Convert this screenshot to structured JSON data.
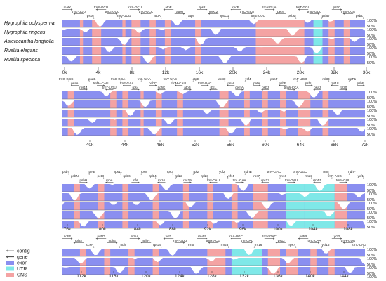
{
  "species": [
    "Hygrophila polysperma",
    "Hygrophila ringens",
    "Asteracantha longifolia",
    "Ruellia elegans",
    "Ruellia speciosa"
  ],
  "legend": [
    {
      "label": "contig",
      "kind": "contig",
      "color": "#8c8c8c"
    },
    {
      "label": "gene",
      "kind": "gene",
      "color": "#555555"
    },
    {
      "label": "exon",
      "kind": "swatch",
      "color": "#8a8ff0"
    },
    {
      "label": "UTR",
      "kind": "swatch",
      "color": "#7fe8e8"
    },
    {
      "label": "CNS",
      "kind": "swatch",
      "color": "#f4a3a3"
    }
  ],
  "colors": {
    "exon": "#8a8ff0",
    "utr": "#7fe8e8",
    "cns": "#f4a3a3",
    "curve": "#ffffff",
    "gene_line": "#555555"
  },
  "pct_labels": [
    "100%",
    "50%"
  ],
  "panels": [
    {
      "id": "panel-1",
      "ticks": [
        "0k",
        "4k",
        "8k",
        "12k",
        "16k",
        "20k",
        "24k",
        "28k",
        "32k",
        "36k"
      ],
      "gene_labels": [
        "matK",
        "trnK-UUU",
        "rps16",
        "trnS-GCU",
        "trnG-UCC",
        "trnQ-UUG",
        "trnS-GCU",
        "trnG-UCC",
        "atpA",
        "atpF",
        "atpH",
        "atpI",
        "rps2",
        "rpoC2",
        "rpoC1",
        "rpoB",
        "trnC-GCA",
        "trnE-UUC",
        "trnY-GUA",
        "petN",
        "psbM",
        "trnT-GGU",
        "trnD-GUC",
        "psbD",
        "psbC",
        "trnS-UGA",
        "psbZ"
      ]
    },
    {
      "id": "panel-2",
      "ticks": [
        "40k",
        "44k",
        "48k",
        "52k",
        "56k",
        "60k",
        "64k",
        "68k",
        "72k"
      ],
      "gene_labels": [
        "trnG-GCC",
        "psaA",
        "rps14",
        "psaB",
        "trnfM-CAU",
        "trnT-UGU",
        "trnS-GGA",
        "trnF-GAA",
        "rps4",
        "trnL-UAA",
        "ndhC",
        "ndhK",
        "trnV-UAC",
        "trnM-CAU",
        "atpB",
        "atpE",
        "trnE-UAC",
        "rbcL",
        "accD",
        "psaI",
        "cemA",
        "ycf4",
        "petA",
        "psbJ",
        "psbF",
        "psbE",
        "trnW-CCA",
        "trnP-UGG",
        "psbL",
        "psaJ",
        "rpl33",
        "rps18",
        "rpl20",
        "clpP1",
        "psbB"
      ]
    },
    {
      "id": "panel-3",
      "ticks": [
        "76k",
        "80k",
        "84k",
        "88k",
        "92k",
        "96k",
        "100k",
        "104k",
        "108k"
      ],
      "gene_labels": [
        "psbT",
        "psbN",
        "psbH",
        "petB",
        "petD",
        "rpoA",
        "rps11",
        "rpl36",
        "infA",
        "rps8",
        "rpl14",
        "rpl16",
        "rps3",
        "rpl22",
        "rps19",
        "rpl2",
        "rpl23",
        "trnI-CAU",
        "ycf2",
        "ycf15",
        "trnL-CAA",
        "ndhB",
        "rps7",
        "rps12",
        "trnV-GAC",
        "rrn16",
        "trnI-GAU",
        "trnA-UGC",
        "rrn23",
        "rrn4.5",
        "rrn5",
        "trnR-ACG",
        "trnN-GUU",
        "ndhF",
        "ycf1"
      ]
    },
    {
      "id": "panel-4",
      "ticks": [
        "112k",
        "116k",
        "120k",
        "124k",
        "128k",
        "132k",
        "136k",
        "140k",
        "144k"
      ],
      "gene_labels": [
        "ndhF",
        "rpl32",
        "ccsA",
        "ndhD",
        "ndhE",
        "ndhI",
        "ndhA",
        "ndhH",
        "rps15",
        "ycf1",
        "trnN-GUU",
        "rrn5",
        "rrn4.5",
        "trnR-ACG",
        "rrn23",
        "trnA-UGC",
        "trnI-GAU",
        "rrn16",
        "trnV-GAC",
        "rps12",
        "rps7",
        "ndhB",
        "trnL-CAA",
        "ycf15",
        "ycf2",
        "trnH-GUG",
        "trnL-UAG"
      ]
    }
  ]
}
